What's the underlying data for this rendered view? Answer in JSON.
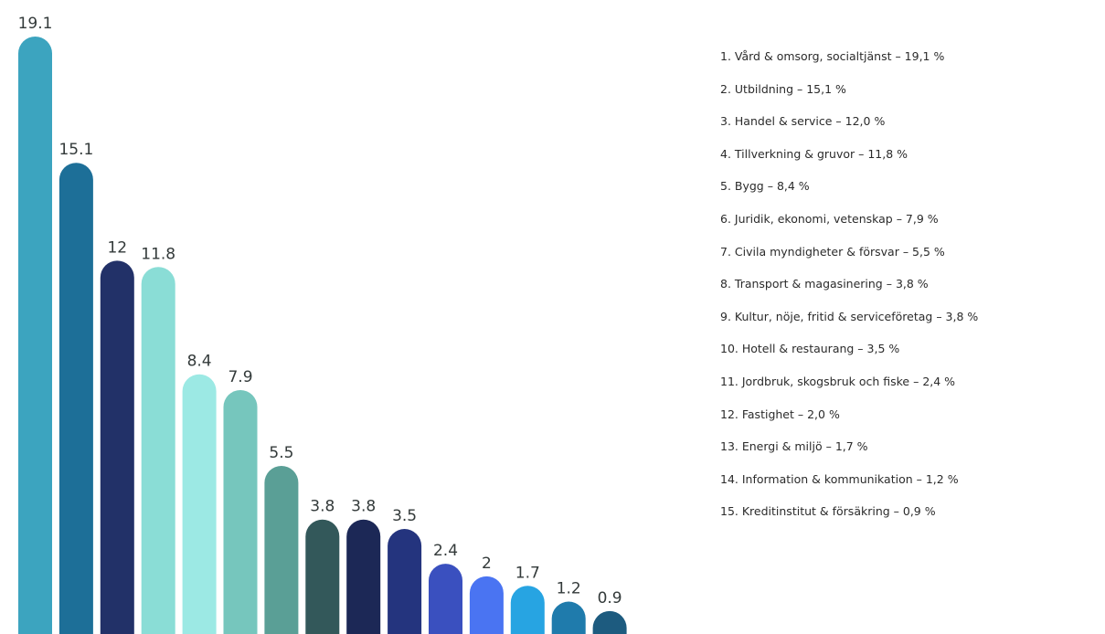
{
  "chart_data": {
    "type": "bar",
    "categories": [
      "Vård & omsorg, socialtjänst",
      "Utbildning",
      "Handel & service",
      "Tillverkning & gruvor",
      "Bygg",
      "Juridik, ekonomi, vetenskap",
      "Civila myndigheter & försvar",
      "Transport & magasinering",
      "Kultur, nöje, fritid & serviceföretag",
      "Hotell & restaurang",
      "Jordbruk, skogsbruk och fiske",
      "Fastighet",
      "Energi & miljö",
      "Information & kommunikation",
      "Kreditinstitut & försäkring"
    ],
    "values": [
      19.1,
      15.1,
      12,
      11.8,
      8.4,
      7.9,
      5.5,
      3.8,
      3.8,
      3.5,
      2.4,
      2,
      1.7,
      1.2,
      0.9
    ],
    "value_labels": [
      "19.1",
      "15.1",
      "12",
      "11.8",
      "8.4",
      "7.9",
      "5.5",
      "3.8",
      "3.8",
      "3.5",
      "2.4",
      "2",
      "1.7",
      "1.2",
      "0.9"
    ],
    "colors": [
      "#3ca4bf",
      "#1d6f98",
      "#223168",
      "#8addd6",
      "#9ce9e4",
      "#76c6bd",
      "#5a9f96",
      "#33585a",
      "#1c2856",
      "#24347e",
      "#3a50bf",
      "#4a74f2",
      "#27a4e2",
      "#1f7bac",
      "#1d5b7f"
    ],
    "ylim": [
      0,
      19.1
    ],
    "legend": {
      "placement": "right",
      "entries": [
        "1. Vård & omsorg, socialtjänst – 19,1 %",
        "2. Utbildning – 15,1 %",
        "3. Handel & service – 12,0 %",
        "4. Tillverkning & gruvor – 11,8 %",
        "5. Bygg – 8,4 %",
        "6. Juridik, ekonomi, vetenskap  – 7,9 %",
        "7. Civila myndigheter & försvar – 5,5 %",
        "8. Transport & magasinering – 3,8 %",
        "9. Kultur, nöje, fritid & serviceföretag – 3,8 %",
        "10. Hotell & restaurang – 3,5 %",
        "11. Jordbruk, skogsbruk och fiske – 2,4 %",
        "12. Fastighet – 2,0 %",
        "13. Energi & miljö – 1,7 %",
        "14. Information & kommunikation – 1,2 %",
        "15. Kreditinstitut & försäkring – 0,9 %"
      ]
    },
    "grid": false
  }
}
